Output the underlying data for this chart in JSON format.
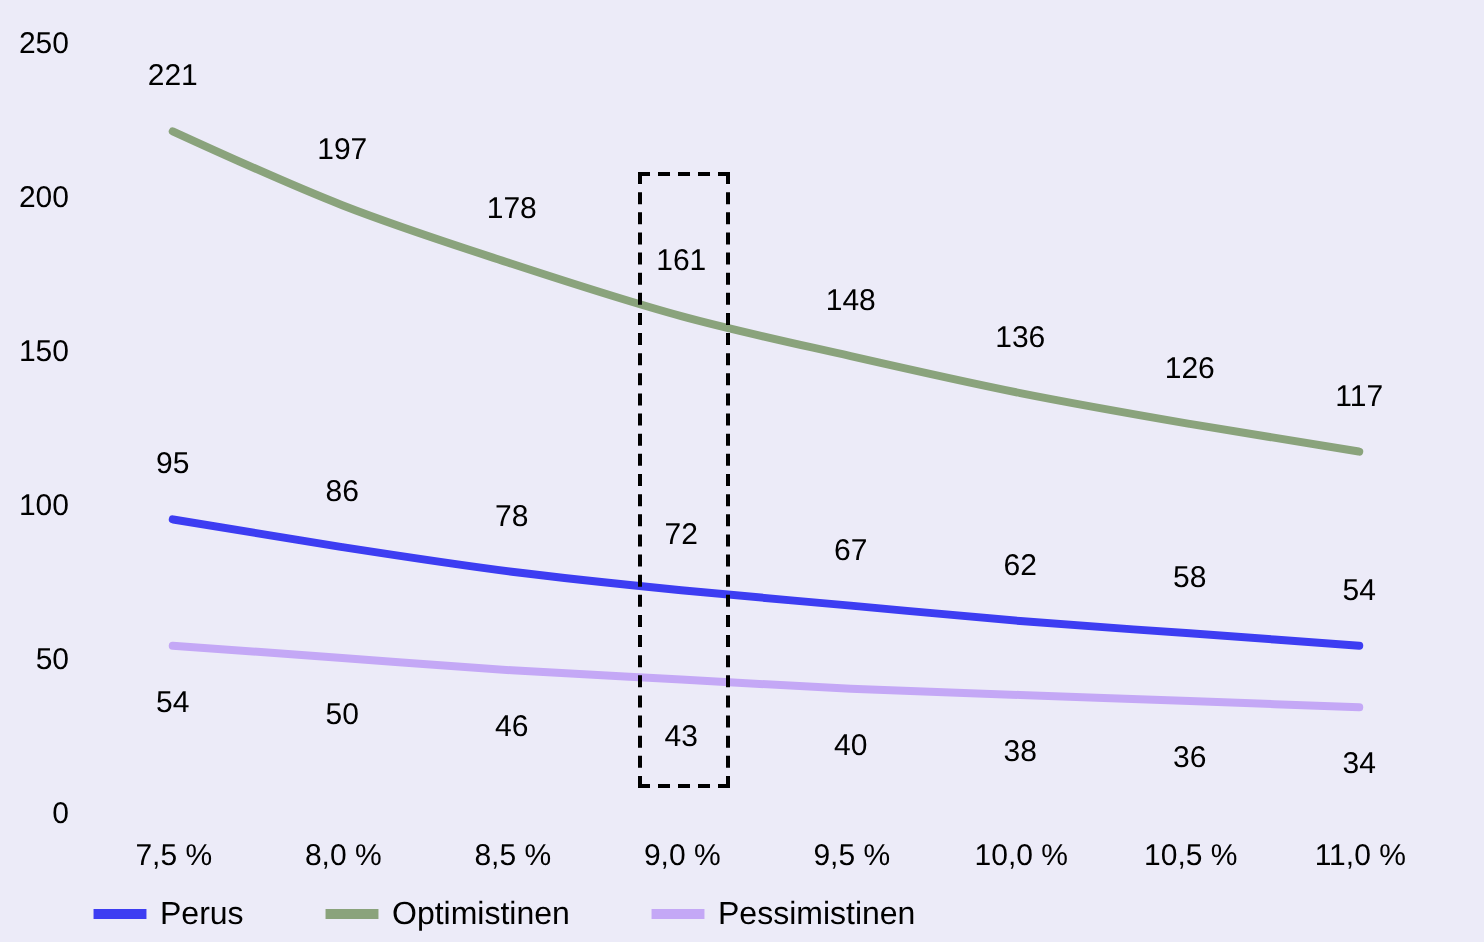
{
  "chart_data": {
    "type": "line",
    "categories": [
      "7,5 %",
      "8,0 %",
      "8,5 %",
      "9,0 %",
      "9,5 %",
      "10,0 %",
      "10,5 %",
      "11,0 %"
    ],
    "series": [
      {
        "name": "Perus",
        "color": "#3d3df2",
        "values": [
          95,
          86,
          78,
          72,
          67,
          62,
          58,
          54
        ]
      },
      {
        "name": "Optimistinen",
        "color": "#8aa37c",
        "values": [
          221,
          197,
          178,
          161,
          148,
          136,
          126,
          117
        ]
      },
      {
        "name": "Pessimistinen",
        "color": "#c4a8f6",
        "values": [
          54,
          50,
          46,
          43,
          40,
          38,
          36,
          34
        ]
      }
    ],
    "ylim": [
      0,
      250
    ],
    "yticks": [
      0,
      50,
      100,
      150,
      200,
      250
    ],
    "grid": false,
    "legend": "bottom",
    "data_labels": true,
    "marker": "none",
    "line_style": "solid"
  }
}
